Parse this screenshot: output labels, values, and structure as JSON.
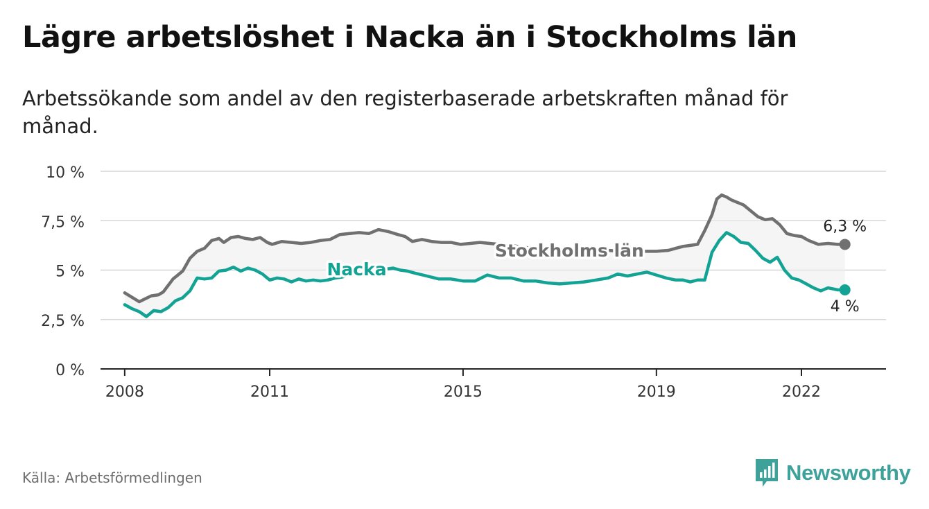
{
  "header": {
    "title": "Lägre arbetslöshet i Nacka än i Stockholms län",
    "subtitle": "Arbetssökande som andel av den registerbaserade arbetskraften månad för månad."
  },
  "footer": {
    "source": "Källa: Arbetsförmedlingen",
    "brand": "Newsworthy",
    "brand_color": "#3fa29a"
  },
  "chart_data": {
    "type": "line",
    "title": "Lägre arbetslöshet i Nacka än i Stockholms län",
    "xlabel": "",
    "ylabel": "",
    "xlim": [
      2007.5,
      2023.75
    ],
    "ylim": [
      0,
      10
    ],
    "grid": true,
    "x_ticks": [
      {
        "value": 2008,
        "label": "2008"
      },
      {
        "value": 2011,
        "label": "2011"
      },
      {
        "value": 2015,
        "label": "2015"
      },
      {
        "value": 2019,
        "label": "2019"
      },
      {
        "value": 2022,
        "label": "2022"
      }
    ],
    "y_ticks": [
      {
        "value": 0,
        "label": "0 %"
      },
      {
        "value": 2.5,
        "label": "2,5 %"
      },
      {
        "value": 5,
        "label": "5 %"
      },
      {
        "value": 7.5,
        "label": "7,5 %"
      },
      {
        "value": 10,
        "label": "10 %"
      }
    ],
    "series": [
      {
        "name": "Stockholms län",
        "color": "#707070",
        "end_label": "6,3 %",
        "x": [
          2008.0,
          2008.3,
          2008.55,
          2008.7,
          2008.8,
          2009.0,
          2009.2,
          2009.35,
          2009.5,
          2009.65,
          2009.8,
          2009.95,
          2010.05,
          2010.2,
          2010.35,
          2010.5,
          2010.65,
          2010.8,
          2010.95,
          2011.05,
          2011.25,
          2011.45,
          2011.65,
          2011.85,
          2012.05,
          2012.25,
          2012.45,
          2012.65,
          2012.85,
          2013.05,
          2013.25,
          2013.45,
          2013.65,
          2013.8,
          2013.95,
          2014.15,
          2014.35,
          2014.55,
          2014.75,
          2014.95,
          2015.15,
          2015.35,
          2015.55,
          2015.75,
          2016.0,
          2016.25,
          2016.5,
          2016.75,
          2017.0,
          2017.25,
          2017.5,
          2017.75,
          2018.0,
          2018.25,
          2018.5,
          2018.75,
          2019.0,
          2019.25,
          2019.4,
          2019.55,
          2019.7,
          2019.85,
          2020.0,
          2020.15,
          2020.25,
          2020.35,
          2020.45,
          2020.55,
          2020.65,
          2020.8,
          2020.95,
          2021.1,
          2021.25,
          2021.4,
          2021.55,
          2021.7,
          2021.85,
          2022.0,
          2022.15,
          2022.35,
          2022.55,
          2022.75,
          2022.9
        ],
        "y": [
          3.85,
          3.4,
          3.7,
          3.75,
          3.9,
          4.55,
          4.95,
          5.6,
          5.95,
          6.1,
          6.5,
          6.6,
          6.4,
          6.65,
          6.7,
          6.6,
          6.55,
          6.65,
          6.4,
          6.3,
          6.45,
          6.4,
          6.35,
          6.4,
          6.5,
          6.55,
          6.8,
          6.85,
          6.9,
          6.85,
          7.05,
          6.95,
          6.8,
          6.7,
          6.45,
          6.55,
          6.45,
          6.4,
          6.4,
          6.3,
          6.35,
          6.4,
          6.35,
          6.3,
          6.25,
          6.15,
          6.1,
          6.0,
          5.95,
          5.95,
          6.0,
          6.05,
          6.0,
          5.95,
          5.9,
          5.95,
          5.95,
          6.0,
          6.1,
          6.2,
          6.25,
          6.3,
          7.0,
          7.8,
          8.6,
          8.8,
          8.7,
          8.55,
          8.45,
          8.3,
          8.0,
          7.7,
          7.55,
          7.6,
          7.3,
          6.85,
          6.75,
          6.7,
          6.5,
          6.3,
          6.35,
          6.3,
          6.3
        ]
      },
      {
        "name": "Nacka",
        "color": "#12a394",
        "end_label": "4 %",
        "x": [
          2008.0,
          2008.15,
          2008.3,
          2008.45,
          2008.6,
          2008.75,
          2008.9,
          2009.05,
          2009.2,
          2009.35,
          2009.5,
          2009.65,
          2009.8,
          2009.95,
          2010.1,
          2010.25,
          2010.4,
          2010.55,
          2010.7,
          2010.85,
          2011.0,
          2011.15,
          2011.3,
          2011.45,
          2011.6,
          2011.75,
          2011.9,
          2012.05,
          2012.2,
          2012.35,
          2012.5,
          2012.65,
          2012.8,
          2012.95,
          2013.1,
          2013.25,
          2013.4,
          2013.55,
          2013.7,
          2013.85,
          2014.0,
          2014.25,
          2014.5,
          2014.75,
          2015.0,
          2015.25,
          2015.5,
          2015.75,
          2016.0,
          2016.25,
          2016.5,
          2016.75,
          2017.0,
          2017.25,
          2017.5,
          2017.75,
          2018.0,
          2018.2,
          2018.4,
          2018.6,
          2018.8,
          2019.0,
          2019.2,
          2019.4,
          2019.55,
          2019.7,
          2019.85,
          2020.0,
          2020.15,
          2020.3,
          2020.45,
          2020.6,
          2020.75,
          2020.9,
          2021.05,
          2021.2,
          2021.35,
          2021.5,
          2021.65,
          2021.8,
          2021.95,
          2022.1,
          2022.25,
          2022.4,
          2022.55,
          2022.75,
          2022.9
        ],
        "y": [
          3.25,
          3.05,
          2.9,
          2.65,
          2.95,
          2.9,
          3.1,
          3.45,
          3.6,
          3.95,
          4.6,
          4.55,
          4.6,
          4.95,
          5.0,
          5.15,
          4.95,
          5.1,
          5.0,
          4.8,
          4.5,
          4.6,
          4.55,
          4.4,
          4.55,
          4.45,
          4.5,
          4.45,
          4.5,
          4.6,
          4.65,
          4.75,
          4.85,
          4.9,
          4.95,
          5.0,
          5.05,
          5.1,
          5.0,
          4.95,
          4.85,
          4.7,
          4.55,
          4.55,
          4.45,
          4.45,
          4.75,
          4.6,
          4.6,
          4.45,
          4.45,
          4.35,
          4.3,
          4.35,
          4.4,
          4.5,
          4.6,
          4.8,
          4.7,
          4.8,
          4.9,
          4.75,
          4.6,
          4.5,
          4.5,
          4.4,
          4.5,
          4.5,
          5.9,
          6.5,
          6.9,
          6.7,
          6.4,
          6.35,
          6.0,
          5.6,
          5.4,
          5.65,
          5.0,
          4.6,
          4.5,
          4.3,
          4.1,
          3.95,
          4.1,
          4.0,
          4.0
        ]
      }
    ],
    "annotations": [
      {
        "text": "Stockholms län",
        "series": "Stockholms län",
        "x": 2017.2,
        "y": 6.0
      },
      {
        "text": "Nacka",
        "series": "Nacka",
        "x": 2012.8,
        "y": 5.05
      }
    ]
  }
}
